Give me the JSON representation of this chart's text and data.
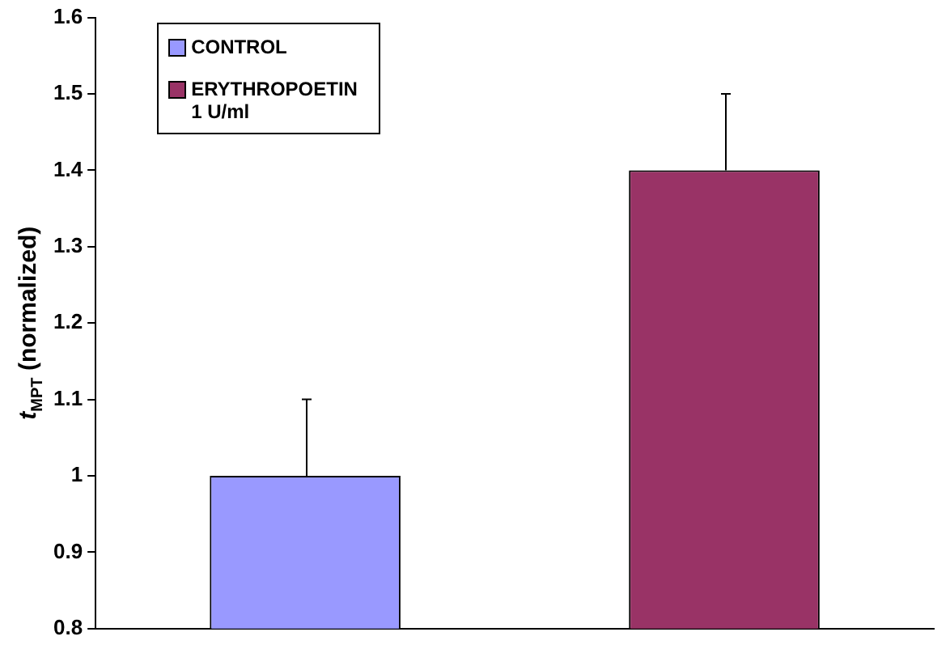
{
  "chart_data": {
    "type": "bar",
    "ylabel": "t$_{MPT}$ (normalized)",
    "categories": [
      null,
      null
    ],
    "series": [
      {
        "name": "CONTROL",
        "color": "#9999ff",
        "values": [
          1,
          null
        ],
        "errors": [
          [
            1,
            1.1
          ],
          null
        ]
      },
      {
        "name": "ERYTHROPOETIN 1 U/ml",
        "color": "#993366",
        "values": [
          null,
          1.4
        ],
        "errors": [
          null,
          [
            1.4,
            1.5
          ]
        ]
      }
    ],
    "ylim": [
      0.8,
      1.6
    ],
    "yticks": [
      0.8,
      0.9,
      1,
      1.1,
      1.2,
      1.3,
      1.4,
      1.5,
      1.6
    ],
    "grid": false,
    "legend": "top left"
  }
}
